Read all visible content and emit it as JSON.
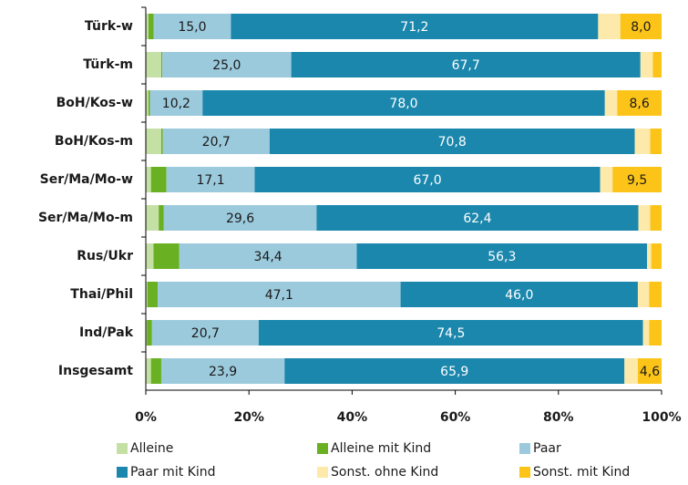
{
  "chart_data": {
    "type": "stacked_barh",
    "categories": [
      "Türk-w",
      "Türk-m",
      "BoH/Kos-w",
      "BoH/Kos-m",
      "Ser/Ma/Mo-w",
      "Ser/Ma/Mo-m",
      "Rus/Ukr",
      "Thai/Phil",
      "Ind/Pak",
      "Insgesamt"
    ],
    "series": [
      {
        "name": "Alleine",
        "color": "#c5e0a5",
        "values": [
          0.5,
          3.0,
          0.5,
          3.0,
          1.0,
          2.5,
          1.5,
          0.3,
          0.2,
          1.0
        ]
      },
      {
        "name": "Alleine mit Kind",
        "color": "#6ab023",
        "values": [
          1.0,
          0.2,
          0.3,
          0.3,
          3.0,
          1.0,
          5.0,
          2.0,
          1.0,
          2.0
        ]
      },
      {
        "name": "Paar",
        "color": "#9ccadd",
        "values": [
          15.0,
          25.0,
          10.2,
          20.7,
          17.1,
          29.6,
          34.4,
          47.1,
          20.7,
          23.9
        ],
        "value_labels": [
          "15,0",
          "25,0",
          "10,2",
          "20,7",
          "17,1",
          "29,6",
          "34,4",
          "47,1",
          "20,7",
          "23,9"
        ]
      },
      {
        "name": "Paar mit Kind",
        "color": "#1b87ad",
        "values": [
          71.2,
          67.7,
          78.0,
          70.8,
          67.0,
          62.4,
          56.3,
          46.0,
          74.5,
          65.9
        ],
        "value_labels": [
          "71,2",
          "67,7",
          "78,0",
          "70,8",
          "67,0",
          "62,4",
          "56,3",
          "46,0",
          "74,5",
          "65,9"
        ]
      },
      {
        "name": "Sonst. ohne Kind",
        "color": "#fde9a9",
        "values": [
          4.3,
          2.4,
          2.4,
          3.0,
          2.4,
          2.3,
          0.8,
          2.2,
          1.2,
          2.6
        ]
      },
      {
        "name": "Sonst. mit Kind",
        "color": "#fcc419",
        "values": [
          8.0,
          1.7,
          8.6,
          2.2,
          9.5,
          2.2,
          2.0,
          2.4,
          2.4,
          4.6
        ],
        "value_labels": [
          "8,0",
          null,
          "8,6",
          null,
          "9,5",
          null,
          null,
          null,
          null,
          "4,6"
        ]
      }
    ],
    "xlim": [
      0,
      100
    ],
    "xticks": [
      {
        "value": 0,
        "label": "0%"
      },
      {
        "value": 20,
        "label": "20%"
      },
      {
        "value": 40,
        "label": "40%"
      },
      {
        "value": 60,
        "label": "60%"
      },
      {
        "value": 80,
        "label": "80%"
      },
      {
        "value": 100,
        "label": "100%"
      }
    ],
    "legend": "bottom"
  }
}
